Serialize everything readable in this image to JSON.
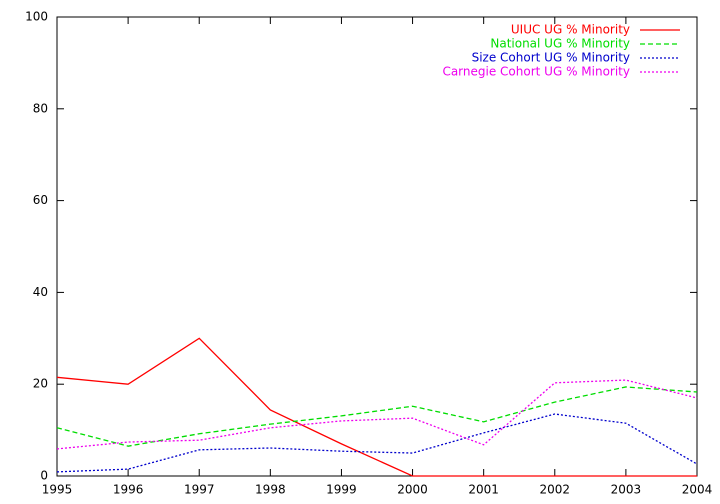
{
  "chart_data": {
    "type": "line",
    "x": [
      1995,
      1996,
      1997,
      1998,
      1999,
      2000,
      2001,
      2002,
      2003,
      2004
    ],
    "xlim": [
      1995,
      2004
    ],
    "xticks": [
      1995,
      1996,
      1997,
      1998,
      1999,
      2000,
      2001,
      2002,
      2003,
      2004
    ],
    "ylim": [
      0,
      100
    ],
    "yticks": [
      0,
      20,
      40,
      60,
      80,
      100
    ],
    "legend": "upper right",
    "series": [
      {
        "name": "UIUC UG % Minority",
        "color": "#ff0000",
        "line_style": "solid",
        "values": [
          21.5,
          20,
          30,
          14.4,
          7,
          0,
          0,
          0,
          0,
          0
        ]
      },
      {
        "name": "National UG % Minority",
        "color": "#00dd00",
        "line_style": "dashed",
        "values": [
          10.5,
          6.5,
          9.2,
          11.3,
          13.1,
          15.2,
          11.8,
          16.1,
          19.4,
          18.3
        ]
      },
      {
        "name": "Size Cohort UG % Minority",
        "color": "#0000cc",
        "line_style": "dotted",
        "values": [
          0.9,
          1.5,
          5.7,
          6.1,
          5.4,
          5,
          9.4,
          13.5,
          11.5,
          2.6
        ]
      },
      {
        "name": "Carnegie Cohort UG % Minority",
        "color": "#ee00ee",
        "line_style": "dotted",
        "values": [
          5.9,
          7.4,
          7.8,
          10.5,
          12,
          12.6,
          6.8,
          20.3,
          20.9,
          17
        ]
      }
    ]
  }
}
